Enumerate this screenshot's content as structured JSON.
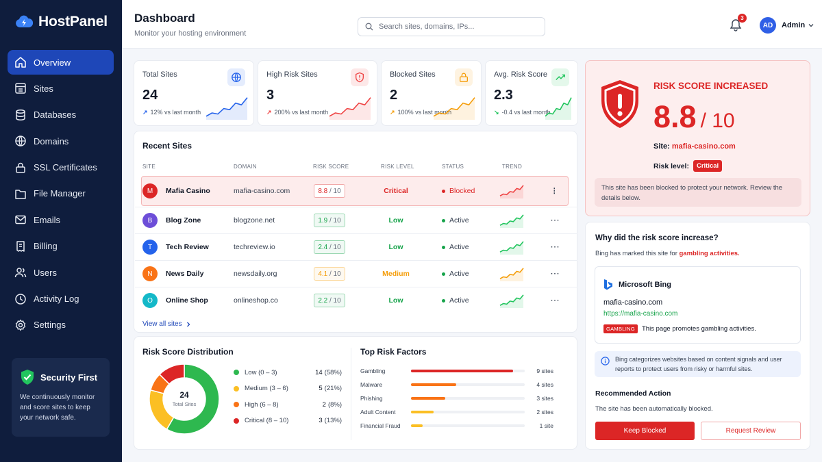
{
  "brand": {
    "name": "HostPanel"
  },
  "nav": [
    {
      "label": "Overview",
      "icon": "home-icon",
      "active": true
    },
    {
      "label": "Sites",
      "icon": "sites-icon"
    },
    {
      "label": "Databases",
      "icon": "database-icon"
    },
    {
      "label": "Domains",
      "icon": "globe-icon"
    },
    {
      "label": "SSL Certificates",
      "icon": "lock-icon"
    },
    {
      "label": "File Manager",
      "icon": "folder-icon"
    },
    {
      "label": "Emails",
      "icon": "mail-icon"
    },
    {
      "label": "Billing",
      "icon": "receipt-icon"
    },
    {
      "label": "Users",
      "icon": "users-icon"
    },
    {
      "label": "Activity Log",
      "icon": "clock-icon"
    },
    {
      "label": "Settings",
      "icon": "gear-icon"
    }
  ],
  "promo": {
    "title": "Security First",
    "text": "We continuously monitor and score sites to keep your network safe."
  },
  "header": {
    "title": "Dashboard",
    "subtitle": "Monitor your hosting environment",
    "search_placeholder": "Search sites, domains, IPs...",
    "notifications": "3",
    "avatar_initials": "AD",
    "user": "Admin"
  },
  "stats": [
    {
      "title": "Total Sites",
      "value": "24",
      "change": "12% vs last month",
      "arrow": "↗",
      "color": "#2563eb",
      "icon": "globe-icon"
    },
    {
      "title": "High Risk Sites",
      "value": "3",
      "change": "200% vs last month",
      "arrow": "↗",
      "color": "#ef4444",
      "icon": "shield-alert-icon"
    },
    {
      "title": "Blocked Sites",
      "value": "2",
      "change": "100% vs last month",
      "arrow": "↗",
      "color": "#f59e0b",
      "icon": "lock-icon"
    },
    {
      "title": "Avg. Risk Score",
      "value": "2.3",
      "change": "-0.4 vs last month",
      "arrow": "↘",
      "color": "#22c55e",
      "icon": "trend-icon"
    }
  ],
  "recent": {
    "title": "Recent Sites",
    "columns": [
      "SITE",
      "DOMAIN",
      "RISK SCORE",
      "RISK LEVEL",
      "STATUS",
      "TREND"
    ],
    "rows": [
      {
        "initial": "M",
        "avatar": "#dc2626",
        "name": "Mafia Casino",
        "domain": "mafia-casino.com",
        "score": "8.8",
        "of": " / 10",
        "level": "Critical",
        "level_color": "#dc2626",
        "status": "Blocked",
        "status_color": "#dc2626",
        "trend_color": "#ef4444"
      },
      {
        "initial": "B",
        "avatar": "#6d4ed8",
        "name": "Blog Zone",
        "domain": "blogzone.net",
        "score": "1.9",
        "of": " / 10",
        "level": "Low",
        "level_color": "#16a34a",
        "status": "Active",
        "status_color": "#16a34a",
        "trend_color": "#22c55e"
      },
      {
        "initial": "T",
        "avatar": "#2563eb",
        "name": "Tech Review",
        "domain": "techreview.io",
        "score": "2.4",
        "of": " / 10",
        "level": "Low",
        "level_color": "#16a34a",
        "status": "Active",
        "status_color": "#16a34a",
        "trend_color": "#22c55e"
      },
      {
        "initial": "N",
        "avatar": "#f97316",
        "name": "News Daily",
        "domain": "newsdaily.org",
        "score": "4.1",
        "of": " / 10",
        "level": "Medium",
        "level_color": "#f59e0b",
        "status": "Active",
        "status_color": "#16a34a",
        "trend_color": "#f59e0b"
      },
      {
        "initial": "O",
        "avatar": "#14b8c8",
        "name": "Online Shop",
        "domain": "onlineshop.co",
        "score": "2.2",
        "of": " / 10",
        "level": "Low",
        "level_color": "#16a34a",
        "status": "Active",
        "status_color": "#16a34a",
        "trend_color": "#22c55e"
      }
    ],
    "view_all": "View all sites"
  },
  "distribution": {
    "title": "Risk Score Distribution",
    "total": "24",
    "total_label": "Total Sites",
    "items": [
      {
        "label": "Low (0 – 3)",
        "count": "14",
        "pct": "(58%)",
        "value": 14,
        "color": "#2eb84f"
      },
      {
        "label": "Medium (3 – 6)",
        "count": "5",
        "pct": "(21%)",
        "value": 5,
        "color": "#fbbf24"
      },
      {
        "label": "High (6 – 8)",
        "count": "2",
        "pct": "(8%)",
        "value": 2,
        "color": "#f97316"
      },
      {
        "label": "Critical (8 – 10)",
        "count": "3",
        "pct": "(13%)",
        "value": 3,
        "color": "#dc2626"
      }
    ]
  },
  "factors": {
    "title": "Top Risk Factors",
    "items": [
      {
        "label": "Gambling",
        "count": "9 sites",
        "value": 9,
        "color": "#dc2626"
      },
      {
        "label": "Malware",
        "count": "4 sites",
        "value": 4,
        "color": "#f97316"
      },
      {
        "label": "Phishing",
        "count": "3 sites",
        "value": 3,
        "color": "#f97316"
      },
      {
        "label": "Adult Content",
        "count": "2 sites",
        "value": 2,
        "color": "#fbbf24"
      },
      {
        "label": "Financial Fraud",
        "count": "1 site",
        "value": 1,
        "color": "#fbbf24"
      }
    ]
  },
  "alert": {
    "title": "RISK SCORE INCREASED",
    "score": "8.8",
    "out_of": "/ 10",
    "site_label": "Site:",
    "site": "mafia-casino.com",
    "level_label": "Risk level:",
    "level": "Critical",
    "note": "This site has been blocked to protect your network. Review the details below."
  },
  "why": {
    "title": "Why did the risk score increase?",
    "sub_prefix": "Bing has marked this site for ",
    "sub_highlight": "gambling activities.",
    "bing_name": "Microsoft Bing",
    "domain": "mafia-casino.com",
    "url": "https://mafia-casino.com",
    "tag": "GAMBLING",
    "tag_text": "This page promotes gambling activities.",
    "info": "Bing categorizes websites based on content signals and user reports to protect users from risky or harmful sites.",
    "rec_title": "Recommended Action",
    "rec_text": "The site has been automatically blocked.",
    "btn_primary": "Keep Blocked",
    "btn_secondary": "Request Review"
  }
}
